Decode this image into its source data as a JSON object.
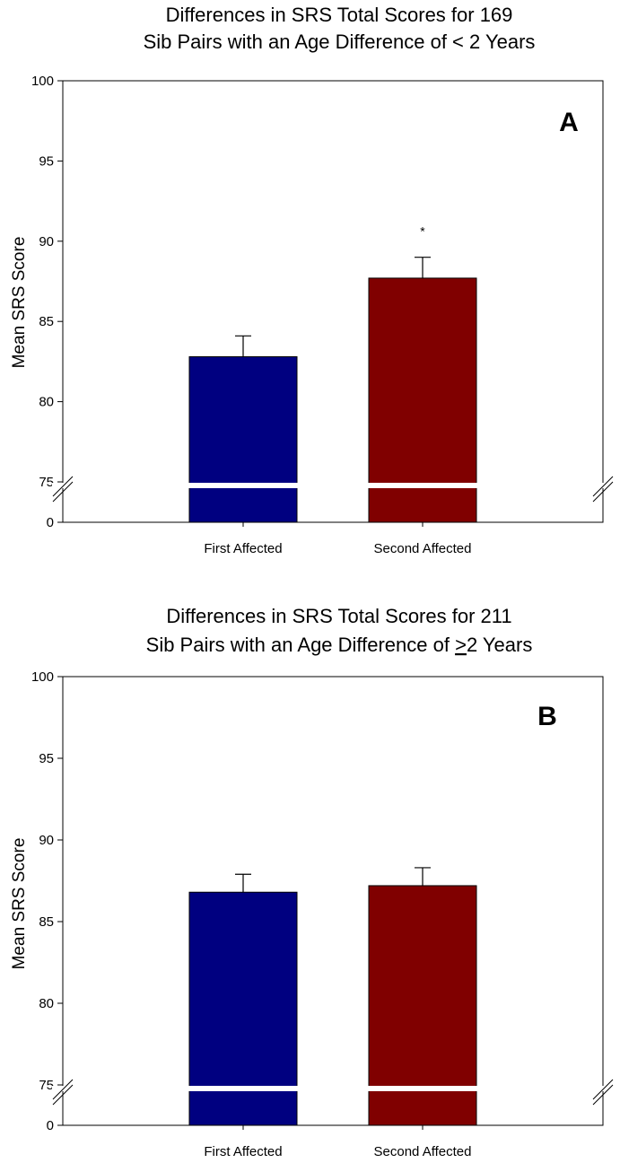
{
  "chart_data": [
    {
      "type": "bar",
      "panel": "A",
      "title_lines": [
        "Differences in SRS Total Scores for 169",
        "Sib Pairs with an Age Difference of < 2 Years"
      ],
      "ylabel": "Mean SRS Score",
      "xlabel": "",
      "categories": [
        "First Affected",
        "Second Affected"
      ],
      "values": [
        82.8,
        87.7
      ],
      "errors": [
        1.3,
        1.3
      ],
      "colors": [
        "#000080",
        "#800000"
      ],
      "significance": [
        "",
        "*"
      ],
      "ylim": [
        75,
        100
      ],
      "yticks": [
        75,
        80,
        85,
        90,
        95,
        100
      ],
      "axis_break": true,
      "baseline_tick": 0
    },
    {
      "type": "bar",
      "panel": "B",
      "title_lines": [
        "Differences in SRS Total Scores for 211",
        "Sib Pairs with an Age Difference of ",
        "2 Years"
      ],
      "title_symbol": ">",
      "ylabel": "Mean SRS Score",
      "xlabel": "",
      "categories": [
        "First Affected",
        "Second Affected"
      ],
      "values": [
        86.8,
        87.2
      ],
      "errors": [
        1.1,
        1.1
      ],
      "colors": [
        "#000080",
        "#800000"
      ],
      "significance": [
        "",
        ""
      ],
      "ylim": [
        75,
        100
      ],
      "yticks": [
        75,
        80,
        85,
        90,
        95,
        100
      ],
      "axis_break": true,
      "baseline_tick": 0
    }
  ]
}
